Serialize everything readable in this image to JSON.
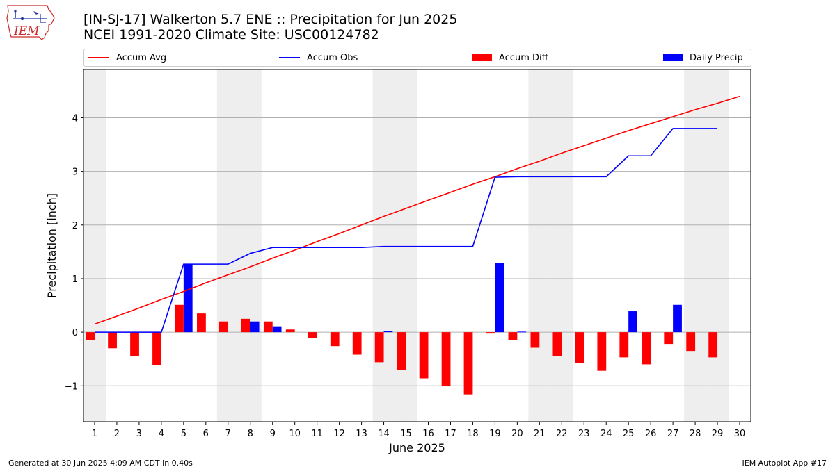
{
  "header": {
    "logo_text": "IEM",
    "title_line1": "[IN-SJ-17] Walkerton 5.7 ENE :: Precipitation for Jun 2025",
    "title_line2": "NCEI 1991-2020 Climate Site: USC00124782"
  },
  "colors": {
    "avg": "#ff0000",
    "obs": "#0000ff",
    "diff": "#ff0000",
    "daily": "#0000ff",
    "weekend_band": "#eeeeee",
    "grid": "#b0b0b0"
  },
  "legend": [
    {
      "label": "Accum Avg",
      "kind": "line",
      "color": "#ff0000"
    },
    {
      "label": "Accum Obs",
      "kind": "line",
      "color": "#0000ff"
    },
    {
      "label": "Accum Diff",
      "kind": "box",
      "color": "#ff0000"
    },
    {
      "label": "Daily Precip",
      "kind": "box",
      "color": "#0000ff"
    }
  ],
  "chart_data": {
    "type": "bar",
    "xlabel": "June 2025",
    "ylabel": "Precipitation [inch]",
    "xlim": [
      0.5,
      30.5
    ],
    "ylim": [
      -1.67,
      4.9
    ],
    "yticks": [
      -1,
      0,
      1,
      2,
      3,
      4
    ],
    "ytick_labels": [
      "−1",
      "0",
      "1",
      "2",
      "3",
      "4"
    ],
    "grid": "horizontal",
    "legend_position": "top",
    "shaded_days": [
      1,
      7,
      8,
      14,
      15,
      21,
      22,
      28,
      29
    ],
    "days": [
      1,
      2,
      3,
      4,
      5,
      6,
      7,
      8,
      9,
      10,
      11,
      12,
      13,
      14,
      15,
      16,
      17,
      18,
      19,
      20,
      21,
      22,
      23,
      24,
      25,
      26,
      27,
      28,
      29,
      30
    ],
    "series": [
      {
        "name": "Accum Avg",
        "kind": "line",
        "color": "#ff0000",
        "values": [
          0.15,
          0.3,
          0.45,
          0.61,
          0.76,
          0.92,
          1.07,
          1.22,
          1.38,
          1.53,
          1.69,
          1.84,
          2.0,
          2.16,
          2.31,
          2.46,
          2.61,
          2.76,
          2.9,
          3.05,
          3.19,
          3.34,
          3.48,
          3.62,
          3.76,
          3.89,
          4.02,
          4.15,
          4.27,
          4.4
        ]
      },
      {
        "name": "Accum Obs",
        "kind": "line",
        "color": "#0000ff",
        "values": [
          0.0,
          0.0,
          0.0,
          0.0,
          1.27,
          1.27,
          1.27,
          1.47,
          1.58,
          1.58,
          1.58,
          1.58,
          1.58,
          1.6,
          1.6,
          1.6,
          1.6,
          1.6,
          2.89,
          2.9,
          2.9,
          2.9,
          2.9,
          2.9,
          3.29,
          3.29,
          3.8,
          3.8,
          3.8,
          null
        ]
      },
      {
        "name": "Accum Diff",
        "kind": "bar",
        "color": "#ff0000",
        "values": [
          -0.15,
          -0.3,
          -0.45,
          -0.61,
          0.51,
          0.35,
          0.2,
          0.25,
          0.2,
          0.05,
          -0.11,
          -0.26,
          -0.42,
          -0.56,
          -0.71,
          -0.86,
          -1.01,
          -1.16,
          -0.01,
          -0.15,
          -0.29,
          -0.44,
          -0.58,
          -0.72,
          -0.47,
          -0.6,
          -0.22,
          -0.35,
          -0.47,
          null
        ]
      },
      {
        "name": "Daily Precip",
        "kind": "bar",
        "color": "#0000ff",
        "values": [
          0,
          0,
          0,
          0,
          1.27,
          0,
          0,
          0.2,
          0.11,
          0,
          0,
          0,
          0,
          0.02,
          0,
          0,
          0,
          0,
          1.29,
          0.01,
          0,
          0,
          0,
          0,
          0.39,
          0,
          0.51,
          0,
          0,
          null
        ]
      }
    ]
  },
  "footer": {
    "left": "Generated at 30 Jun 2025 4:09 AM CDT in 0.40s",
    "right": "IEM Autoplot App #17"
  }
}
